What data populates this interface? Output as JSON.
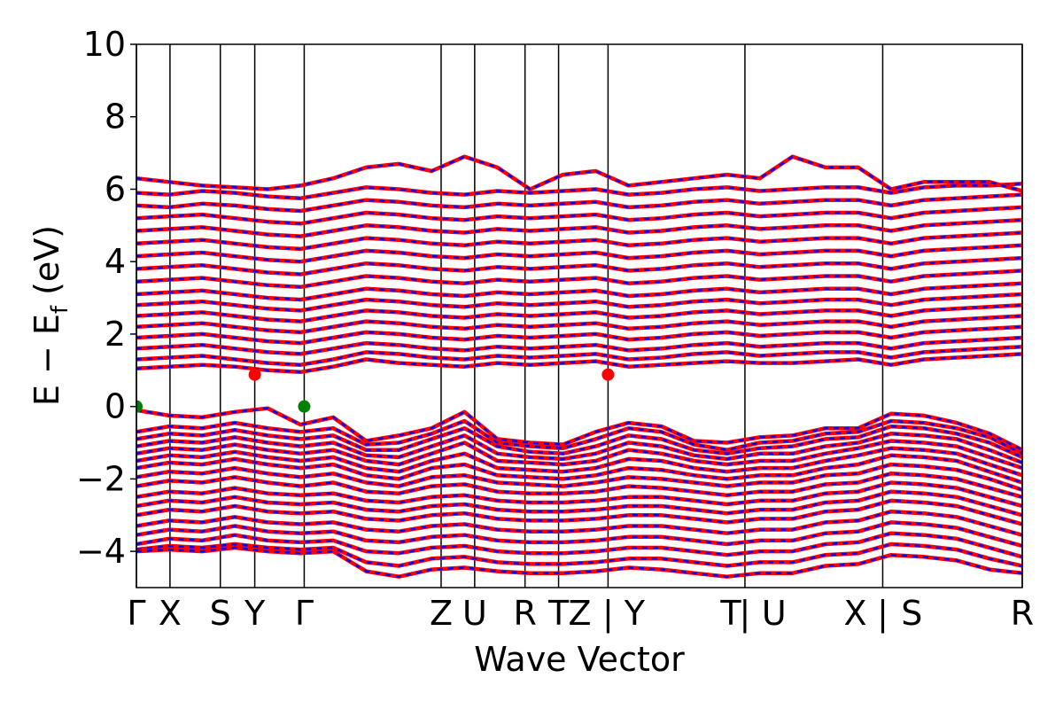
{
  "chart_data": {
    "type": "line",
    "title": "",
    "xlabel": "Wave Vector",
    "ylabel": "E − E_f (eV)",
    "ylabel_parts": {
      "main": "E − E",
      "sub": "f",
      "unit": " (eV)"
    },
    "ylim": [
      -5,
      10
    ],
    "yticks": [
      -4,
      -2,
      0,
      2,
      4,
      6,
      8,
      10
    ],
    "ytick_labels": [
      "−4",
      "−2",
      "0",
      "2",
      "4",
      "6",
      "8",
      "10"
    ],
    "grid": false,
    "legend": "none",
    "xlim": [
      0,
      10.03
    ],
    "kpoint_positions": [
      0,
      0.38,
      0.95,
      1.34,
      1.9,
      3.45,
      3.83,
      4.4,
      4.78,
      5.34,
      6.89,
      8.45,
      10.03
    ],
    "kpoint_labels": [
      {
        "x": 0,
        "label": "Γ"
      },
      {
        "x": 0.38,
        "label": "X"
      },
      {
        "x": 0.95,
        "label": "S"
      },
      {
        "x": 1.34,
        "label": "Y"
      },
      {
        "x": 1.9,
        "label": "Γ"
      },
      {
        "x": 3.45,
        "label": "Z"
      },
      {
        "x": 3.83,
        "label": "U"
      },
      {
        "x": 4.4,
        "label": "R"
      },
      {
        "x": 4.78,
        "label": "T"
      },
      {
        "x": 5.02,
        "label": "Z"
      },
      {
        "x": 5.34,
        "label": "|"
      },
      {
        "x": 5.64,
        "label": "Y"
      },
      {
        "x": 6.73,
        "label": "T"
      },
      {
        "x": 6.89,
        "label": "|"
      },
      {
        "x": 7.22,
        "label": "U"
      },
      {
        "x": 8.14,
        "label": "X"
      },
      {
        "x": 8.45,
        "label": "|"
      },
      {
        "x": 8.78,
        "label": "S"
      },
      {
        "x": 10.03,
        "label": "R"
      }
    ],
    "series": [
      {
        "color": "#ff0000",
        "style": "solid"
      },
      {
        "color": "#0000ff",
        "style": "dashed"
      }
    ],
    "colors": {
      "spin_up": "#ff0000",
      "spin_down": "#0000ff",
      "gap_points": "#008000"
    },
    "vbm_points": [
      {
        "x": 0,
        "y": 0
      },
      {
        "x": 1.9,
        "y": 0
      }
    ],
    "cbm_points": [
      {
        "x": 1.34,
        "y": 0.88
      },
      {
        "x": 5.34,
        "y": 0.88
      }
    ],
    "valence_bands": [
      [
        -0.1,
        -0.25,
        -0.3,
        -0.15,
        -0.05,
        -0.5,
        -0.3,
        -0.95,
        -0.8,
        -0.6,
        -0.15,
        -0.9,
        -1.0,
        -1.05,
        -0.7,
        -0.45,
        -0.55,
        -0.95,
        -1.0,
        -0.85,
        -0.8,
        -0.6,
        -0.6,
        -0.2,
        -0.25,
        -0.45,
        -0.75,
        -1.2
      ],
      [
        -0.7,
        -0.55,
        -0.6,
        -0.45,
        -0.6,
        -0.7,
        -0.6,
        -1.05,
        -1.0,
        -0.75,
        -0.4,
        -1.0,
        -1.1,
        -1.15,
        -0.9,
        -0.6,
        -0.7,
        -1.05,
        -1.2,
        -1.0,
        -0.95,
        -0.75,
        -0.7,
        -0.4,
        -0.45,
        -0.6,
        -0.85,
        -1.3
      ],
      [
        -0.9,
        -0.75,
        -0.8,
        -0.65,
        -0.8,
        -0.9,
        -0.8,
        -1.2,
        -1.2,
        -0.9,
        -0.6,
        -1.1,
        -1.25,
        -1.3,
        -1.1,
        -0.8,
        -0.9,
        -1.2,
        -1.3,
        -1.15,
        -1.1,
        -0.9,
        -0.85,
        -0.55,
        -0.6,
        -0.75,
        -1.0,
        -1.4
      ],
      [
        -1.1,
        -0.95,
        -1.0,
        -0.85,
        -1.0,
        -1.1,
        -1.0,
        -1.35,
        -1.4,
        -1.1,
        -0.8,
        -1.3,
        -1.4,
        -1.45,
        -1.3,
        -1.0,
        -1.1,
        -1.35,
        -1.45,
        -1.3,
        -1.3,
        -1.1,
        -1.0,
        -0.75,
        -0.8,
        -0.9,
        -1.2,
        -1.55
      ],
      [
        -1.3,
        -1.15,
        -1.2,
        -1.05,
        -1.2,
        -1.3,
        -1.2,
        -1.5,
        -1.6,
        -1.3,
        -1.0,
        -1.5,
        -1.55,
        -1.6,
        -1.5,
        -1.2,
        -1.3,
        -1.5,
        -1.6,
        -1.5,
        -1.5,
        -1.3,
        -1.15,
        -0.95,
        -1.0,
        -1.1,
        -1.4,
        -1.7
      ],
      [
        -1.5,
        -1.35,
        -1.4,
        -1.25,
        -1.4,
        -1.5,
        -1.4,
        -1.7,
        -1.8,
        -1.5,
        -1.3,
        -1.7,
        -1.75,
        -1.8,
        -1.7,
        -1.45,
        -1.5,
        -1.7,
        -1.8,
        -1.7,
        -1.7,
        -1.5,
        -1.35,
        -1.15,
        -1.2,
        -1.3,
        -1.6,
        -1.9
      ],
      [
        -1.7,
        -1.55,
        -1.6,
        -1.45,
        -1.6,
        -1.7,
        -1.6,
        -1.9,
        -2.0,
        -1.7,
        -1.6,
        -1.9,
        -1.95,
        -2.0,
        -1.9,
        -1.7,
        -1.75,
        -1.9,
        -2.0,
        -1.9,
        -1.9,
        -1.7,
        -1.6,
        -1.35,
        -1.4,
        -1.5,
        -1.8,
        -2.1
      ],
      [
        -1.95,
        -1.8,
        -1.85,
        -1.7,
        -1.85,
        -1.95,
        -1.85,
        -2.1,
        -2.2,
        -1.95,
        -1.9,
        -2.1,
        -2.15,
        -2.2,
        -2.1,
        -1.95,
        -2.0,
        -2.1,
        -2.2,
        -2.1,
        -2.1,
        -1.9,
        -1.85,
        -1.6,
        -1.65,
        -1.75,
        -2.0,
        -2.3
      ],
      [
        -2.2,
        -2.05,
        -2.1,
        -1.95,
        -2.1,
        -2.2,
        -2.1,
        -2.35,
        -2.4,
        -2.2,
        -2.15,
        -2.35,
        -2.4,
        -2.4,
        -2.35,
        -2.2,
        -2.25,
        -2.35,
        -2.45,
        -2.35,
        -2.35,
        -2.15,
        -2.1,
        -1.85,
        -1.9,
        -2.0,
        -2.25,
        -2.5
      ],
      [
        -2.5,
        -2.35,
        -2.4,
        -2.25,
        -2.4,
        -2.45,
        -2.4,
        -2.6,
        -2.65,
        -2.5,
        -2.45,
        -2.6,
        -2.65,
        -2.65,
        -2.6,
        -2.5,
        -2.5,
        -2.6,
        -2.7,
        -2.6,
        -2.6,
        -2.4,
        -2.35,
        -2.1,
        -2.15,
        -2.25,
        -2.5,
        -2.75
      ],
      [
        -2.75,
        -2.6,
        -2.65,
        -2.5,
        -2.65,
        -2.7,
        -2.65,
        -2.85,
        -2.9,
        -2.75,
        -2.7,
        -2.85,
        -2.9,
        -2.9,
        -2.85,
        -2.75,
        -2.75,
        -2.85,
        -2.95,
        -2.85,
        -2.85,
        -2.65,
        -2.6,
        -2.35,
        -2.4,
        -2.5,
        -2.75,
        -3.0
      ],
      [
        -3.0,
        -2.85,
        -2.9,
        -2.75,
        -2.9,
        -2.95,
        -2.9,
        -3.1,
        -3.15,
        -3.0,
        -2.95,
        -3.1,
        -3.15,
        -3.15,
        -3.1,
        -3.0,
        -3.0,
        -3.1,
        -3.2,
        -3.1,
        -3.1,
        -2.9,
        -2.85,
        -2.6,
        -2.65,
        -2.75,
        -3.0,
        -3.25
      ],
      [
        -3.3,
        -3.15,
        -3.2,
        -3.05,
        -3.2,
        -3.25,
        -3.2,
        -3.4,
        -3.45,
        -3.3,
        -3.25,
        -3.4,
        -3.45,
        -3.45,
        -3.4,
        -3.3,
        -3.3,
        -3.4,
        -3.5,
        -3.4,
        -3.4,
        -3.2,
        -3.15,
        -2.9,
        -2.95,
        -3.05,
        -3.3,
        -3.55
      ],
      [
        -3.55,
        -3.4,
        -3.45,
        -3.3,
        -3.45,
        -3.5,
        -3.45,
        -3.7,
        -3.75,
        -3.6,
        -3.55,
        -3.7,
        -3.75,
        -3.75,
        -3.7,
        -3.6,
        -3.6,
        -3.7,
        -3.8,
        -3.7,
        -3.7,
        -3.5,
        -3.45,
        -3.2,
        -3.25,
        -3.35,
        -3.6,
        -3.85
      ],
      [
        -3.8,
        -3.65,
        -3.7,
        -3.55,
        -3.7,
        -3.75,
        -3.7,
        -4.0,
        -4.05,
        -3.9,
        -3.85,
        -4.0,
        -4.05,
        -4.05,
        -4.0,
        -3.9,
        -3.9,
        -4.0,
        -4.1,
        -4.0,
        -4.0,
        -3.8,
        -3.75,
        -3.5,
        -3.55,
        -3.65,
        -3.9,
        -4.15
      ],
      [
        -3.95,
        -3.85,
        -3.9,
        -3.8,
        -3.9,
        -3.95,
        -3.9,
        -4.3,
        -4.4,
        -4.2,
        -4.15,
        -4.3,
        -4.35,
        -4.35,
        -4.3,
        -4.2,
        -4.2,
        -4.3,
        -4.4,
        -4.3,
        -4.3,
        -4.1,
        -4.05,
        -3.8,
        -3.85,
        -3.95,
        -4.2,
        -4.4
      ],
      [
        -4.0,
        -3.95,
        -4.0,
        -3.9,
        -4.0,
        -4.05,
        -4.0,
        -4.55,
        -4.7,
        -4.5,
        -4.45,
        -4.55,
        -4.6,
        -4.6,
        -4.55,
        -4.45,
        -4.5,
        -4.6,
        -4.7,
        -4.6,
        -4.6,
        -4.4,
        -4.35,
        -4.1,
        -4.15,
        -4.25,
        -4.5,
        -4.6
      ]
    ],
    "conduction_bands": [
      [
        1.05,
        1.1,
        1.15,
        1.1,
        1.0,
        0.95,
        1.1,
        1.3,
        1.2,
        1.15,
        1.1,
        1.2,
        1.15,
        1.2,
        1.25,
        1.1,
        1.15,
        1.2,
        1.25,
        1.2,
        1.2,
        1.25,
        1.3,
        1.15,
        1.3,
        1.35,
        1.4,
        1.45
      ],
      [
        1.3,
        1.35,
        1.4,
        1.3,
        1.2,
        1.15,
        1.3,
        1.5,
        1.45,
        1.35,
        1.3,
        1.4,
        1.35,
        1.4,
        1.45,
        1.3,
        1.35,
        1.45,
        1.5,
        1.4,
        1.45,
        1.5,
        1.5,
        1.35,
        1.5,
        1.55,
        1.6,
        1.65
      ],
      [
        1.6,
        1.65,
        1.7,
        1.6,
        1.5,
        1.45,
        1.6,
        1.75,
        1.7,
        1.6,
        1.55,
        1.65,
        1.6,
        1.65,
        1.7,
        1.55,
        1.6,
        1.7,
        1.75,
        1.65,
        1.7,
        1.75,
        1.75,
        1.6,
        1.75,
        1.8,
        1.85,
        1.9
      ],
      [
        1.9,
        1.95,
        2.0,
        1.9,
        1.8,
        1.75,
        1.9,
        2.05,
        2.0,
        1.9,
        1.85,
        1.95,
        1.9,
        1.95,
        2.0,
        1.85,
        1.9,
        2.0,
        2.05,
        1.95,
        2.0,
        2.05,
        2.05,
        1.9,
        2.05,
        2.1,
        2.15,
        2.2
      ],
      [
        2.2,
        2.25,
        2.3,
        2.2,
        2.1,
        2.05,
        2.2,
        2.35,
        2.3,
        2.2,
        2.15,
        2.25,
        2.2,
        2.25,
        2.3,
        2.15,
        2.2,
        2.3,
        2.35,
        2.25,
        2.3,
        2.35,
        2.35,
        2.2,
        2.35,
        2.4,
        2.45,
        2.5
      ],
      [
        2.5,
        2.55,
        2.6,
        2.5,
        2.4,
        2.35,
        2.5,
        2.65,
        2.6,
        2.5,
        2.45,
        2.55,
        2.5,
        2.55,
        2.6,
        2.45,
        2.5,
        2.6,
        2.65,
        2.55,
        2.6,
        2.65,
        2.65,
        2.5,
        2.65,
        2.7,
        2.75,
        2.8
      ],
      [
        2.8,
        2.85,
        2.9,
        2.8,
        2.7,
        2.65,
        2.8,
        2.95,
        2.9,
        2.8,
        2.75,
        2.85,
        2.8,
        2.85,
        2.9,
        2.75,
        2.8,
        2.9,
        2.95,
        2.85,
        2.9,
        2.95,
        2.95,
        2.8,
        2.95,
        3.0,
        3.05,
        3.1
      ],
      [
        3.1,
        3.15,
        3.2,
        3.1,
        3.0,
        2.95,
        3.1,
        3.25,
        3.2,
        3.1,
        3.05,
        3.15,
        3.1,
        3.15,
        3.2,
        3.05,
        3.1,
        3.2,
        3.25,
        3.15,
        3.2,
        3.25,
        3.25,
        3.1,
        3.25,
        3.3,
        3.35,
        3.4
      ],
      [
        3.45,
        3.5,
        3.55,
        3.45,
        3.35,
        3.3,
        3.45,
        3.6,
        3.55,
        3.45,
        3.4,
        3.5,
        3.45,
        3.5,
        3.55,
        3.4,
        3.45,
        3.55,
        3.6,
        3.5,
        3.55,
        3.6,
        3.6,
        3.45,
        3.6,
        3.65,
        3.7,
        3.75
      ],
      [
        3.8,
        3.85,
        3.9,
        3.8,
        3.7,
        3.65,
        3.8,
        3.95,
        3.9,
        3.8,
        3.75,
        3.85,
        3.8,
        3.85,
        3.9,
        3.75,
        3.8,
        3.9,
        3.95,
        3.85,
        3.9,
        3.95,
        3.95,
        3.8,
        3.95,
        4.0,
        4.05,
        4.1
      ],
      [
        4.15,
        4.2,
        4.25,
        4.15,
        4.05,
        4.0,
        4.15,
        4.3,
        4.25,
        4.15,
        4.1,
        4.2,
        4.15,
        4.2,
        4.25,
        4.1,
        4.15,
        4.25,
        4.3,
        4.2,
        4.25,
        4.3,
        4.3,
        4.15,
        4.3,
        4.35,
        4.4,
        4.45
      ],
      [
        4.5,
        4.55,
        4.6,
        4.5,
        4.4,
        4.35,
        4.5,
        4.65,
        4.6,
        4.5,
        4.45,
        4.55,
        4.5,
        4.55,
        4.6,
        4.45,
        4.5,
        4.6,
        4.65,
        4.55,
        4.6,
        4.65,
        4.65,
        4.5,
        4.65,
        4.7,
        4.75,
        4.8
      ],
      [
        4.85,
        4.9,
        4.95,
        4.85,
        4.75,
        4.7,
        4.85,
        5.0,
        4.95,
        4.85,
        4.8,
        4.9,
        4.85,
        4.9,
        4.95,
        4.8,
        4.85,
        4.95,
        5.0,
        4.9,
        4.95,
        5.0,
        5.0,
        4.85,
        5.0,
        5.05,
        5.1,
        5.15
      ],
      [
        5.2,
        5.25,
        5.3,
        5.2,
        5.1,
        5.05,
        5.2,
        5.35,
        5.3,
        5.2,
        5.15,
        5.25,
        5.2,
        5.25,
        5.3,
        5.15,
        5.2,
        5.3,
        5.35,
        5.25,
        5.3,
        5.35,
        5.35,
        5.2,
        5.35,
        5.4,
        5.45,
        5.5
      ],
      [
        5.55,
        5.5,
        5.6,
        5.55,
        5.45,
        5.4,
        5.55,
        5.7,
        5.65,
        5.55,
        5.5,
        5.6,
        5.55,
        5.6,
        5.65,
        5.5,
        5.55,
        5.65,
        5.7,
        5.6,
        5.65,
        5.7,
        5.7,
        5.55,
        5.7,
        5.75,
        5.8,
        5.85
      ],
      [
        5.9,
        5.85,
        5.95,
        5.9,
        5.8,
        5.75,
        5.9,
        6.05,
        6.0,
        5.9,
        5.85,
        5.95,
        5.9,
        5.95,
        6.0,
        5.85,
        5.9,
        6.0,
        6.05,
        5.95,
        6.0,
        6.05,
        6.05,
        5.9,
        6.05,
        6.1,
        6.1,
        6.15
      ],
      [
        6.3,
        6.2,
        6.1,
        6.05,
        6.0,
        6.1,
        6.3,
        6.6,
        6.7,
        6.5,
        6.9,
        6.6,
        6.0,
        6.4,
        6.5,
        6.1,
        6.2,
        6.3,
        6.4,
        6.3,
        6.9,
        6.6,
        6.6,
        6.0,
        6.2,
        6.2,
        6.2,
        5.95
      ]
    ]
  }
}
